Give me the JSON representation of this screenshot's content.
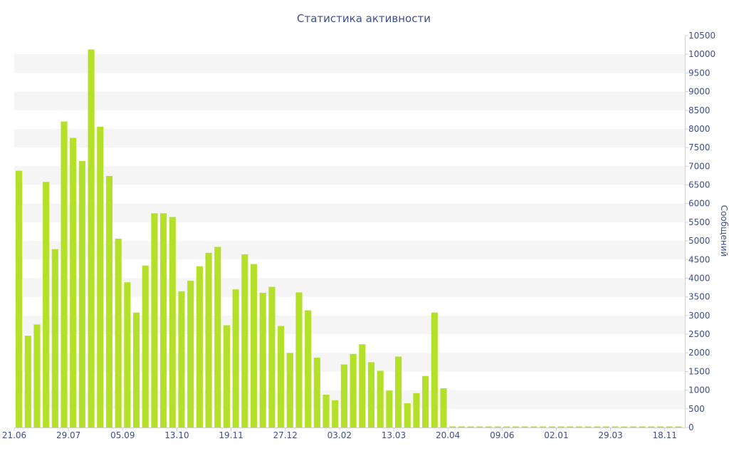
{
  "chart_data": {
    "type": "bar",
    "title": "Статистика активности",
    "ylabel": "Сообщений",
    "xlabel": "",
    "ylim": [
      0,
      10500
    ],
    "y_ticks": [
      0,
      500,
      1000,
      1500,
      2000,
      2500,
      3000,
      3500,
      4000,
      4500,
      5000,
      5500,
      6000,
      6500,
      7000,
      7500,
      8000,
      8500,
      9000,
      9500,
      10000,
      10500
    ],
    "x_tick_labels": [
      {
        "index": 0,
        "label": "21.06"
      },
      {
        "index": 6,
        "label": "29.07"
      },
      {
        "index": 12,
        "label": "05.09"
      },
      {
        "index": 18,
        "label": "13.10"
      },
      {
        "index": 24,
        "label": "19.11"
      },
      {
        "index": 30,
        "label": "27.12"
      },
      {
        "index": 36,
        "label": "03.02"
      },
      {
        "index": 42,
        "label": "13.03"
      },
      {
        "index": 48,
        "label": "20.04"
      },
      {
        "index": 54,
        "label": "09.06"
      },
      {
        "index": 60,
        "label": "02.01"
      },
      {
        "index": 66,
        "label": "29.03"
      },
      {
        "index": 72,
        "label": "18.11"
      }
    ],
    "values": [
      6880,
      2460,
      2760,
      6580,
      4780,
      8200,
      7760,
      7140,
      10130,
      8060,
      6740,
      5060,
      3890,
      3080,
      4340,
      5740,
      5740,
      5640,
      3650,
      3930,
      4320,
      4680,
      4840,
      2740,
      3700,
      4640,
      4380,
      3610,
      3770,
      2720,
      2000,
      3620,
      3140,
      1870,
      880,
      730,
      1690,
      1970,
      2230,
      1750,
      1520,
      990,
      1900,
      650,
      920,
      1380,
      3080,
      1050,
      30,
      30,
      20,
      20,
      20,
      20,
      15,
      15,
      15,
      15,
      15,
      15,
      15,
      15,
      15,
      15,
      15,
      15,
      15,
      15,
      15,
      15,
      15,
      15,
      15,
      15
    ],
    "grid": "alternating horizontal bands",
    "legend": "none",
    "colors": {
      "bar": "#b5e02a",
      "band": "#f5f5f5",
      "text": "#3e4f8a",
      "axis": "#d0d0d0"
    }
  }
}
